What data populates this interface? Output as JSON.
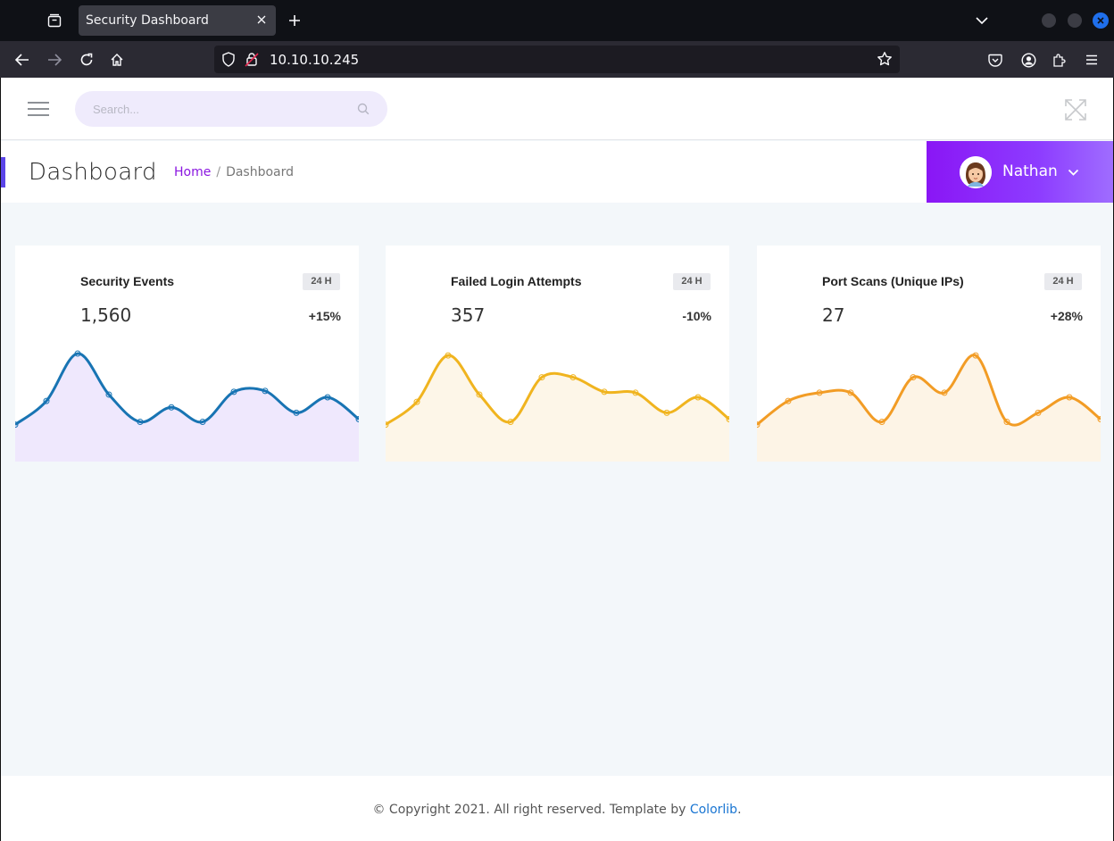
{
  "browser": {
    "tab_title": "Security Dashboard",
    "url": "10.10.10.245",
    "icons": [
      "tab-overview-icon",
      "close-icon",
      "plus-icon",
      "chevron-down-icon",
      "back-icon",
      "forward-icon",
      "reload-icon",
      "home-icon",
      "shield-icon",
      "lock-icon",
      "star-icon",
      "pocket-icon",
      "account-icon",
      "extensions-icon",
      "menu-icon"
    ]
  },
  "topbar": {
    "search_placeholder": "Search..."
  },
  "header": {
    "title": "Dashboard",
    "breadcrumb": {
      "home": "Home",
      "separator": "/",
      "current": "Dashboard"
    },
    "user": {
      "name": "Nathan"
    }
  },
  "cards": [
    {
      "title": "Security Events",
      "badge": "24 H",
      "value": "1,560",
      "change": "+15%",
      "color": "#1874b3",
      "fill": "#efe8fd",
      "series": [
        0.19,
        0.45,
        0.97,
        0.52,
        0.22,
        0.38,
        0.22,
        0.55,
        0.56,
        0.32,
        0.49,
        0.25
      ]
    },
    {
      "title": "Failed Login Attempts",
      "badge": "24 H",
      "value": "357",
      "change": "-10%",
      "color": "#f0b41f",
      "fill": "#fdf6e8",
      "series": [
        0.19,
        0.44,
        0.95,
        0.52,
        0.22,
        0.71,
        0.71,
        0.55,
        0.54,
        0.32,
        0.49,
        0.25
      ]
    },
    {
      "title": "Port Scans (Unique IPs)",
      "badge": "24 H",
      "value": "27",
      "change": "+28%",
      "color": "#f29c25",
      "fill": "#fdf4e6",
      "series": [
        0.19,
        0.45,
        0.54,
        0.54,
        0.22,
        0.71,
        0.54,
        0.95,
        0.22,
        0.32,
        0.49,
        0.25
      ]
    }
  ],
  "footer": {
    "text": "© Copyright 2021. All right reserved. Template by ",
    "link": "Colorlib",
    "end": "."
  }
}
